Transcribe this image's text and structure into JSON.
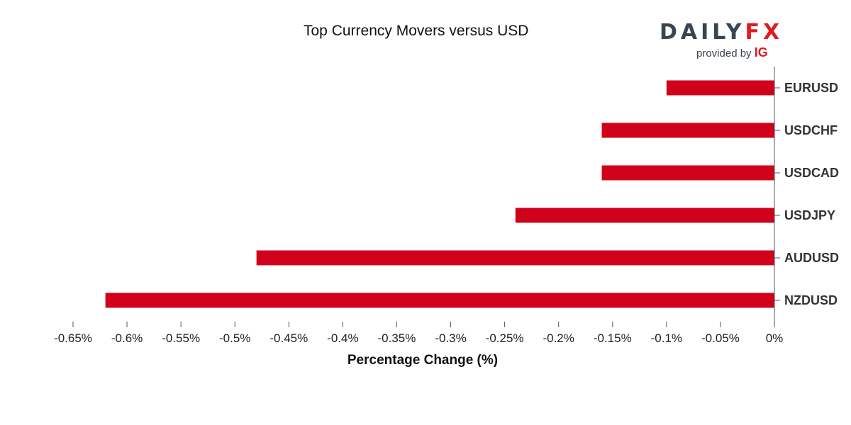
{
  "chart_data": {
    "type": "bar",
    "orientation": "horizontal",
    "title": "Top Currency Movers versus USD",
    "xlabel": "Percentage Change (%)",
    "ylabel": "",
    "categories": [
      "EURUSD",
      "USDCHF",
      "USDCAD",
      "USDJPY",
      "AUDUSD",
      "NZDUSD"
    ],
    "values": [
      -0.1,
      -0.16,
      -0.16,
      -0.24,
      -0.48,
      -0.62
    ],
    "xlim": [
      -0.65,
      0
    ],
    "ticks": [
      -0.65,
      -0.6,
      -0.55,
      -0.5,
      -0.45,
      -0.4,
      -0.35,
      -0.3,
      -0.25,
      -0.2,
      -0.15,
      -0.1,
      -0.05,
      0
    ],
    "tick_labels": [
      "-0.65%",
      "-0.6%",
      "-0.55%",
      "-0.5%",
      "-0.45%",
      "-0.4%",
      "-0.35%",
      "-0.3%",
      "-0.25%",
      "-0.2%",
      "-0.15%",
      "-0.1%",
      "-0.05%",
      "0%"
    ],
    "bar_color": "#d0021b",
    "grid": false,
    "legend": "none"
  },
  "branding": {
    "logo_word_1": "DAILY",
    "logo_word_2": "FX",
    "provided_by": "provided by ",
    "provider": "IG",
    "brand_dark": "#3a4452",
    "brand_red": "#e01b22"
  }
}
